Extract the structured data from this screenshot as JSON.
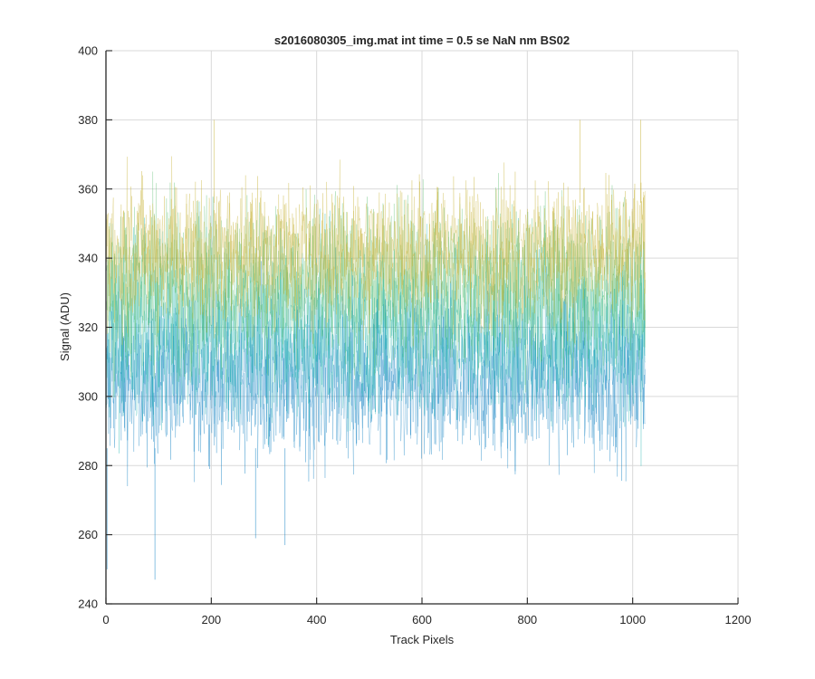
{
  "chart_data": {
    "type": "line",
    "title": "s2016080305_img.mat int time = 0.5 se  NaN nm BS02",
    "xlabel": "Track Pixels",
    "ylabel": "Signal (ADU)",
    "xlim": [
      0,
      1200
    ],
    "ylim": [
      240,
      400
    ],
    "xticks": [
      0,
      200,
      400,
      600,
      800,
      1000,
      1200
    ],
    "yticks": [
      240,
      260,
      280,
      300,
      320,
      340,
      360,
      380,
      400
    ],
    "grid": true,
    "legend": "none",
    "x_range": [
      1,
      1024
    ],
    "signal_band": {
      "typical_min": 285,
      "typical_max": 356,
      "occasional_min": 270,
      "occasional_max": 375,
      "outlier_lows": [
        {
          "x": 2,
          "y": 250
        },
        {
          "x": 93,
          "y": 247
        },
        {
          "x": 284,
          "y": 259
        },
        {
          "x": 340,
          "y": 257
        }
      ],
      "outlier_highs": [
        {
          "x": 205,
          "y": 380
        },
        {
          "x": 900,
          "y": 380
        },
        {
          "x": 1015,
          "y": 380
        }
      ]
    },
    "colors": {
      "low": "#0c7fc2",
      "mid": "#1bb3b0",
      "midHigh": "#5cbf72",
      "high": "#c8b33a",
      "axis": "#262626",
      "grid": "#d9d9d9"
    }
  }
}
